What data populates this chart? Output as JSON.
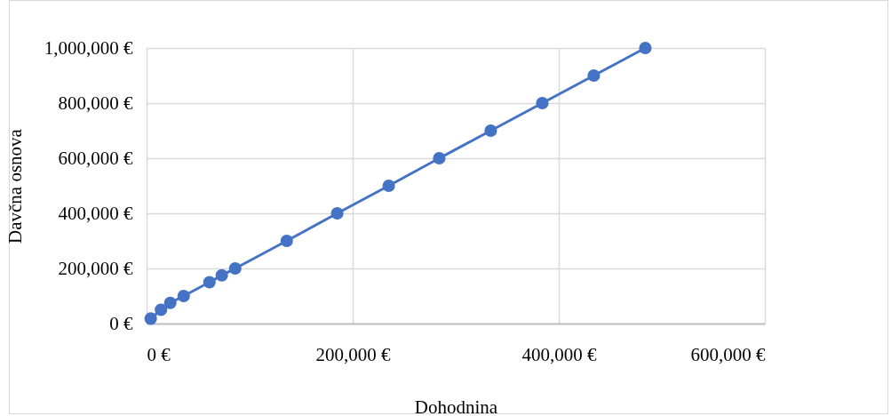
{
  "chart_data": {
    "type": "line",
    "xlabel": "Dohodnina",
    "ylabel": "Davčna osnova",
    "x": [
      4000,
      14000,
      23000,
      36000,
      61000,
      73000,
      86000,
      136000,
      185000,
      235000,
      284000,
      334000,
      384000,
      434000,
      484000
    ],
    "series": [
      {
        "color": "#4472c4",
        "values": [
          18000,
          50000,
          75000,
          100000,
          150000,
          175000,
          200000,
          300000,
          400000,
          500000,
          600000,
          700000,
          800000,
          900000,
          1000000
        ]
      }
    ],
    "xlim": [
      0,
      600000
    ],
    "ylim": [
      0,
      1000000
    ],
    "xticks": [
      {
        "value": 0,
        "label": "0 €"
      },
      {
        "value": 200000,
        "label": "200,000 €"
      },
      {
        "value": 400000,
        "label": "400,000 €"
      },
      {
        "value": 600000,
        "label": "600,000 €"
      }
    ],
    "yticks": [
      {
        "value": 0,
        "label": "0 €"
      },
      {
        "value": 200000,
        "label": "200,000 €"
      },
      {
        "value": 400000,
        "label": "400,000 €"
      },
      {
        "value": 600000,
        "label": "600,000 €"
      },
      {
        "value": 800000,
        "label": "800,000 €"
      },
      {
        "value": 1000000,
        "label": "1,000,000 €"
      }
    ],
    "grid": true,
    "marker": "circle",
    "line_style": "solid"
  }
}
